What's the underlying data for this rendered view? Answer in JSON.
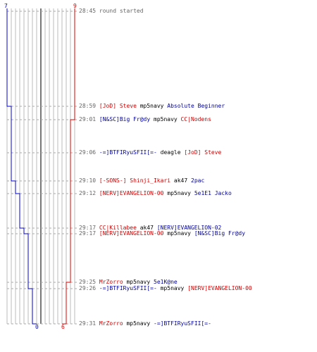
{
  "colors": {
    "blue": "#0000cc",
    "red": "#dd0000",
    "grid": "#bbbbbb",
    "dash": "#aaaaaa",
    "center": "#777777"
  },
  "scores": {
    "blue_start": "7",
    "red_start": "9",
    "blue_end": "0",
    "red_end": "6"
  },
  "chart_data": {
    "type": "line",
    "series": [
      {
        "team": "blue",
        "values": [
          7,
          7,
          6,
          6,
          6,
          6,
          5,
          5,
          4,
          4,
          4,
          3,
          3,
          2,
          2,
          1,
          0,
          0
        ]
      },
      {
        "team": "red",
        "values": [
          9,
          9,
          9,
          9,
          8,
          8,
          8,
          8,
          8,
          8,
          8,
          8,
          8,
          8,
          8,
          7,
          7,
          6
        ]
      }
    ]
  },
  "events": [
    {
      "time": "28:45",
      "note": "round started"
    },
    {
      "time": "28:59",
      "killer": "[JoD] Steve",
      "killer_team": "red",
      "weapon": "mp5navy",
      "victim": "Absolute Beginner",
      "victim_team": "blue"
    },
    {
      "time": "29:01",
      "killer": "[N&SC]Big Fr@dy",
      "killer_team": "blue",
      "weapon": "mp5navy",
      "victim": "CC|Nodens",
      "victim_team": "red"
    },
    {
      "time": "29:06",
      "killer": "-=]BTFIRyuSFII[=-",
      "killer_team": "blue",
      "weapon": "deagle",
      "victim": "[JoD] Steve",
      "victim_team": "red"
    },
    {
      "time": "29:10",
      "killer": "[-SONS-] Shinji_Ikari",
      "killer_team": "red",
      "weapon": "ak47",
      "victim": "2pac",
      "victim_team": "blue"
    },
    {
      "time": "29:12",
      "killer": "[NERV]EVANGELION-00",
      "killer_team": "red",
      "weapon": "mp5navy",
      "victim": "5e1E1 Jacko",
      "victim_team": "blue"
    },
    {
      "time": "29:17",
      "killer": "CC|Killabee",
      "killer_team": "red",
      "weapon": "ak47",
      "victim": "[NERV]EVANGELION-02",
      "victim_team": "blue"
    },
    {
      "time": "29:17",
      "killer": "[NERV]EVANGELION-00",
      "killer_team": "red",
      "weapon": "mp5navy",
      "victim": "[N&SC]Big Fr@dy",
      "victim_team": "blue"
    },
    {
      "time": "29:25",
      "killer": "MrZorro",
      "killer_team": "red",
      "weapon": "mp5navy",
      "victim": "5e1K@ne",
      "victim_team": "blue"
    },
    {
      "time": "29:26",
      "killer": "-=]BTFIRyuSFII[=-",
      "killer_team": "blue",
      "weapon": "mp5navy",
      "victim": "[NERV]EVANGELION-00",
      "victim_team": "red"
    },
    {
      "time": "29:31",
      "killer": "MrZorro",
      "killer_team": "red",
      "weapon": "mp5navy",
      "victim": "-=]BTFIRyuSFII[=-",
      "victim_team": "blue"
    }
  ]
}
